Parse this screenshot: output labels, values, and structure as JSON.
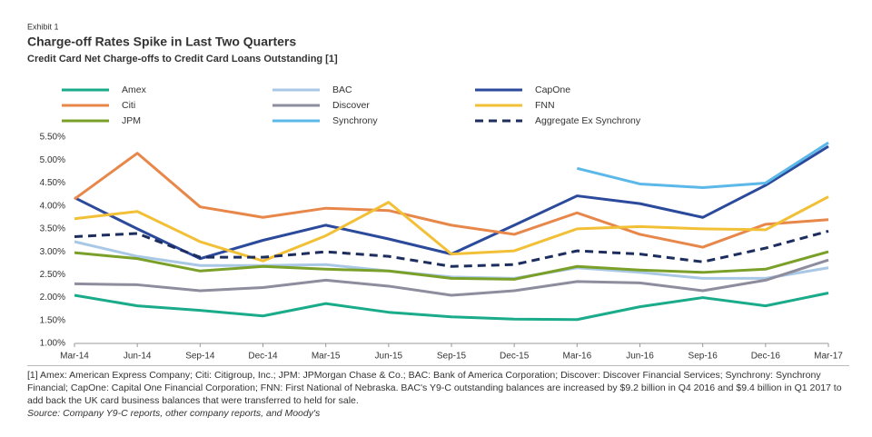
{
  "chart_data": {
    "type": "line",
    "label": "Exhibit 1",
    "title": "Charge-off Rates Spike in Last Two Quarters",
    "subtitle": "Credit Card Net Charge-offs to Credit Card Loans Outstanding [1]",
    "categories": [
      "Mar-14",
      "Jun-14",
      "Sep-14",
      "Dec-14",
      "Mar-15",
      "Jun-15",
      "Sep-15",
      "Dec-15",
      "Mar-16",
      "Jun-16",
      "Sep-16",
      "Dec-16",
      "Mar-17"
    ],
    "series": [
      {
        "name": "Amex",
        "color": "#1aab8a",
        "values": [
          2.05,
          1.82,
          1.72,
          1.6,
          1.87,
          1.68,
          1.58,
          1.53,
          1.52,
          1.8,
          2.0,
          1.82,
          2.1
        ]
      },
      {
        "name": "BAC",
        "color": "#a9c8e6",
        "values": [
          3.22,
          2.9,
          2.7,
          2.7,
          2.72,
          2.58,
          2.45,
          2.42,
          2.65,
          2.55,
          2.42,
          2.42,
          2.65
        ]
      },
      {
        "name": "CapOne",
        "color": "#2b4a9b",
        "values": [
          4.18,
          3.5,
          2.85,
          3.25,
          3.58,
          3.28,
          2.95,
          3.58,
          4.22,
          4.05,
          3.75,
          4.45,
          5.3
        ]
      },
      {
        "name": "Citi",
        "color": "#e8874a",
        "values": [
          4.15,
          5.15,
          3.98,
          3.75,
          3.95,
          3.9,
          3.58,
          3.38,
          3.85,
          3.38,
          3.1,
          3.6,
          3.7
        ]
      },
      {
        "name": "Discover",
        "color": "#8d8d9e",
        "values": [
          2.3,
          2.28,
          2.15,
          2.22,
          2.38,
          2.25,
          2.05,
          2.15,
          2.35,
          2.32,
          2.15,
          2.38,
          2.82
        ]
      },
      {
        "name": "FNN",
        "color": "#f2c037",
        "values": [
          3.72,
          3.88,
          3.22,
          2.8,
          3.35,
          4.08,
          2.95,
          3.02,
          3.5,
          3.55,
          3.5,
          3.48,
          4.2
        ]
      },
      {
        "name": "JPM",
        "color": "#7aa02a",
        "values": [
          2.98,
          2.85,
          2.58,
          2.68,
          2.62,
          2.58,
          2.42,
          2.4,
          2.68,
          2.6,
          2.55,
          2.62,
          3.0
        ]
      },
      {
        "name": "Synchrony",
        "color": "#5bb8e8",
        "values": [
          null,
          null,
          null,
          null,
          null,
          null,
          null,
          null,
          4.82,
          4.48,
          4.4,
          4.5,
          5.38
        ]
      },
      {
        "name": "Aggregate Ex Synchrony",
        "color": "#1c2d5e",
        "dashed": true,
        "values": [
          3.33,
          3.4,
          2.88,
          2.88,
          3.0,
          2.9,
          2.68,
          2.72,
          3.02,
          2.95,
          2.78,
          3.08,
          3.45
        ]
      }
    ],
    "ylim": [
      1.0,
      5.5
    ],
    "yticks": [
      {
        "value": 1.0,
        "label": "1.00%"
      },
      {
        "value": 1.5,
        "label": "1.50%"
      },
      {
        "value": 2.0,
        "label": "2.00%"
      },
      {
        "value": 2.5,
        "label": "2.50%"
      },
      {
        "value": 3.0,
        "label": "3.00%"
      },
      {
        "value": 3.5,
        "label": "3.50%"
      },
      {
        "value": 4.0,
        "label": "4.00%"
      },
      {
        "value": 4.5,
        "label": "4.50%"
      },
      {
        "value": 5.0,
        "label": "5.00%"
      },
      {
        "value": 5.5,
        "label": "5.50%"
      }
    ],
    "grid": false,
    "note": "[1] Amex: American Express Company; Citi: Citigroup, Inc.; JPM: JPMorgan Chase & Co.; BAC: Bank of America Corporation; Discover: Discover Financial Services; Synchrony: Synchrony Financial; CapOne: Capital One Financial Corporation; FNN: First National of Nebraska. BAC's Y9-C outstanding balances are increased by $9.2 billion in Q4 2016 and $9.4 billion in Q1 2017 to add back the UK card business balances that were transferred to held for sale.",
    "source": "Source: Company Y9-C reports, other company reports, and Moody's"
  }
}
